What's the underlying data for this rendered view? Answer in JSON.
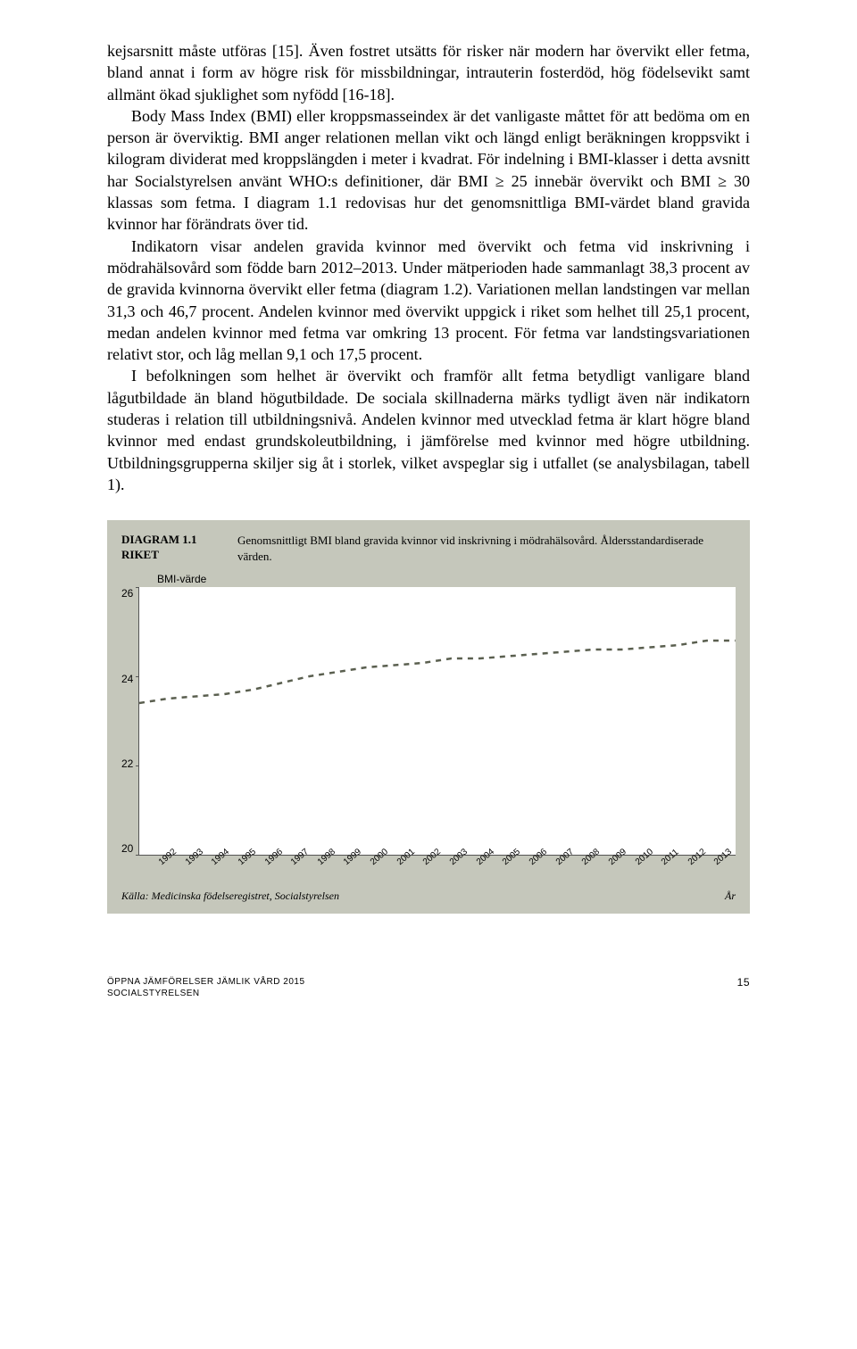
{
  "body": {
    "p1": "kejsarsnitt måste utföras [15]. Även fostret utsätts för risker när modern har övervikt eller fetma, bland annat i form av högre risk för missbildningar, intrauterin fosterdöd, hög födelsevikt samt allmänt ökad sjuklighet som nyfödd [16-18].",
    "p2": "Body Mass Index (BMI) eller kroppsmasseindex är det vanligaste måttet för att bedöma om en person är överviktig. BMI anger relationen mellan vikt och längd enligt beräkningen kroppsvikt i kilogram dividerat med kroppslängden i meter i kvadrat. För indelning i BMI-klasser i detta avsnitt har Socialstyrelsen använt WHO:s definitioner, där BMI ≥ 25 innebär övervikt och BMI ≥ 30 klassas som fetma. I diagram 1.1 redovisas hur det genomsnittliga BMI-värdet bland gravida kvinnor har förändrats över tid.",
    "p3": "Indikatorn visar andelen gravida kvinnor med övervikt och fetma vid inskrivning i mödrahälsovård som födde barn 2012–2013. Under mätperioden hade sammanlagt 38,3 procent av de gravida kvinnorna övervikt eller fetma (diagram 1.2). Variationen mellan landstingen var mellan 31,3 och 46,7 procent. Andelen kvinnor med övervikt uppgick i riket som helhet till 25,1 procent, medan andelen kvinnor med fetma var omkring 13 procent. För fetma var landstingsvariationen relativt stor, och låg mellan 9,1 och 17,5 procent.",
    "p4": "I befolkningen som helhet är övervikt och framför allt fetma betydligt vanligare bland lågutbildade än bland högutbildade. De sociala skillnaderna märks tydligt även när indikatorn studeras i relation till utbildningsnivå. Andelen kvinnor med utvecklad fetma är klart högre bland kvinnor med endast grundskoleutbildning, i jämförelse med kvinnor med högre utbildning. Utbildningsgrupperna skiljer sig åt i storlek, vilket avspeglar sig i utfallet (se analysbilagan, tabell 1)."
  },
  "chart": {
    "label_line1": "DIAGRAM 1.1",
    "label_line2": "RIKET",
    "description": "Genomsnittligt BMI bland gravida kvinnor vid inskrivning i mödrahälsovård. Åldersstandardiserade värden.",
    "y_title": "BMI-värde",
    "y_ticks": [
      "26",
      "24",
      "22",
      "20"
    ],
    "ylim": [
      20,
      26
    ],
    "categories": [
      "1992",
      "1993",
      "1994",
      "1995",
      "1996",
      "1997",
      "1998",
      "1999",
      "2000",
      "2001",
      "2002",
      "2003",
      "2004",
      "2005",
      "2006",
      "2007",
      "2008",
      "2009",
      "2010",
      "2011",
      "2012",
      "2013"
    ],
    "values": [
      23.4,
      23.5,
      23.55,
      23.6,
      23.7,
      23.85,
      24.0,
      24.1,
      24.2,
      24.25,
      24.3,
      24.4,
      24.4,
      24.45,
      24.5,
      24.55,
      24.6,
      24.6,
      24.65,
      24.7,
      24.8,
      24.8
    ],
    "line_color": "#5a5f4f",
    "line_width": 2.5,
    "dash": "6 6",
    "background_color": "#ffffff",
    "panel_bg": "#c5c7bb",
    "source": "Källa: Medicinska födelseregistret, Socialstyrelsen",
    "x_axis_label": "År"
  },
  "footer": {
    "left_line1": "ÖPPNA JÄMFÖRELSER JÄMLIK VÅRD 2015",
    "left_line2": "SOCIALSTYRELSEN",
    "page_number": "15"
  }
}
